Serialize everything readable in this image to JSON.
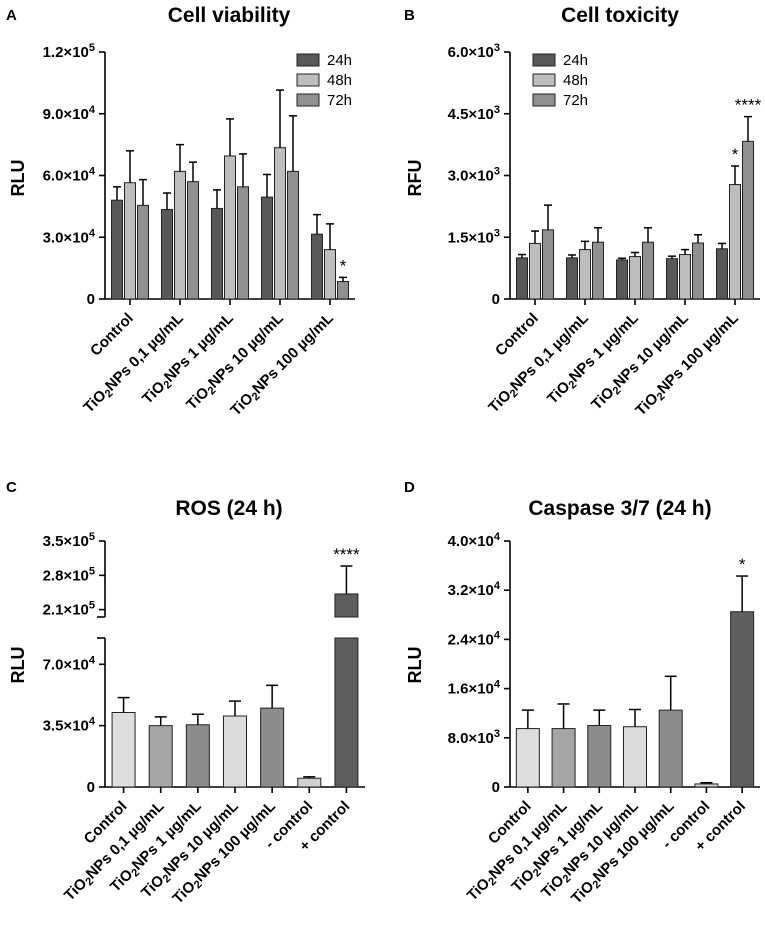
{
  "chart_data": [
    {
      "panel": "A",
      "type": "bar",
      "title": "Cell viability",
      "ylabel": "RLU",
      "yticks": [
        "0",
        "3.0×10⁴",
        "6.0×10⁴",
        "9.0×10⁴",
        "1.2×10⁵"
      ],
      "ylim": [
        0,
        120000
      ],
      "categories": [
        "Control",
        "TiO2NPs 0,1 µg/mL",
        "TiO2NPs 1 µg/mL",
        "TiO2NPs 10 µg/mL",
        "TiO2NPs 100 µg/mL"
      ],
      "series": [
        {
          "name": "24h",
          "color": "#585858",
          "values": [
            48000,
            43500,
            44000,
            49500,
            31500
          ],
          "errors": [
            6500,
            8000,
            9000,
            11000,
            9500
          ]
        },
        {
          "name": "48h",
          "color": "#bdbdbd",
          "values": [
            56500,
            62000,
            69500,
            73500,
            24000
          ],
          "errors": [
            15500,
            13000,
            18000,
            28000,
            12500
          ]
        },
        {
          "name": "72h",
          "color": "#909090",
          "values": [
            45500,
            57000,
            54500,
            62000,
            8500
          ],
          "errors": [
            12500,
            9500,
            16000,
            27000,
            2000
          ]
        }
      ],
      "annotations": [
        {
          "category": 4,
          "series": 2,
          "text": "*"
        }
      ]
    },
    {
      "panel": "B",
      "type": "bar",
      "title": "Cell toxicity",
      "ylabel": "RFU",
      "yticks": [
        "0",
        "1.5×10³",
        "3.0×10³",
        "4.5×10³",
        "6.0×10³"
      ],
      "ylim": [
        0,
        6000
      ],
      "categories": [
        "Control",
        "TiO2NPs 0,1 µg/mL",
        "TiO2NPs 1 µg/mL",
        "TiO2NPs 10 µg/mL",
        "TiO2NPs 100 µg/mL"
      ],
      "series": [
        {
          "name": "24h",
          "color": "#585858",
          "values": [
            1000,
            1000,
            950,
            980,
            1220
          ],
          "errors": [
            80,
            70,
            40,
            60,
            130
          ]
        },
        {
          "name": "48h",
          "color": "#bdbdbd",
          "values": [
            1350,
            1200,
            1030,
            1080,
            2780
          ],
          "errors": [
            300,
            200,
            100,
            120,
            450
          ]
        },
        {
          "name": "72h",
          "color": "#909090",
          "values": [
            1680,
            1380,
            1380,
            1360,
            3830
          ],
          "errors": [
            600,
            350,
            350,
            200,
            600
          ]
        }
      ],
      "annotations": [
        {
          "category": 4,
          "series": 1,
          "text": "*"
        },
        {
          "category": 4,
          "series": 2,
          "text": "****"
        }
      ]
    },
    {
      "panel": "C",
      "type": "bar",
      "title": "ROS (24 h)",
      "ylabel": "RLU",
      "yticks": [
        "0",
        "3.5×10⁴",
        "7.0×10⁴",
        "2.1×10⁵",
        "2.8×10⁵",
        "3.5×10⁵"
      ],
      "ylim": [
        0,
        350000
      ],
      "axis_break": [
        85000,
        195000
      ],
      "categories": [
        "Control",
        "TiO2NPs 0,1 µg/mL",
        "TiO2NPs 1 µg/mL",
        "TiO2NPs 10 µg/mL",
        "TiO2NPs 100 µg/mL",
        "- control",
        "+ control"
      ],
      "bars": [
        {
          "value": 42500,
          "error": 8500,
          "color": "#dedede"
        },
        {
          "value": 35000,
          "error": 5000,
          "color": "#a5a5a5"
        },
        {
          "value": 35500,
          "error": 6000,
          "color": "#8c8c8c"
        },
        {
          "value": 40500,
          "error": 8500,
          "color": "#dcdcdc"
        },
        {
          "value": 45000,
          "error": 13000,
          "color": "#8c8c8c"
        },
        {
          "value": 5000,
          "error": 800,
          "color": "#d0d0d0"
        },
        {
          "value": 242000,
          "error": 57000,
          "color": "#5e5e5e"
        }
      ],
      "annotations": [
        {
          "category": 6,
          "text": "****"
        }
      ]
    },
    {
      "panel": "D",
      "type": "bar",
      "title": "Caspase 3/7 (24 h)",
      "ylabel": "RLU",
      "yticks": [
        "0",
        "8.0×10³",
        "1.6×10⁴",
        "2.4×10⁴",
        "3.2×10⁴",
        "4.0×10⁴"
      ],
      "ylim": [
        0,
        40000
      ],
      "categories": [
        "Control",
        "TiO2NPs 0,1 µg/mL",
        "TiO2NPs 1 µg/mL",
        "TiO2NPs 10 µg/mL",
        "TiO2NPs 100 µg/mL",
        "- control",
        "+ control"
      ],
      "bars": [
        {
          "value": 9500,
          "error": 3000,
          "color": "#dedede"
        },
        {
          "value": 9500,
          "error": 4000,
          "color": "#a5a5a5"
        },
        {
          "value": 10000,
          "error": 2500,
          "color": "#8c8c8c"
        },
        {
          "value": 9800,
          "error": 2800,
          "color": "#dcdcdc"
        },
        {
          "value": 12500,
          "error": 5500,
          "color": "#8c8c8c"
        },
        {
          "value": 500,
          "error": 200,
          "color": "#d0d0d0"
        },
        {
          "value": 28500,
          "error": 5800,
          "color": "#5e5e5e"
        }
      ],
      "annotations": [
        {
          "category": 6,
          "text": "*"
        }
      ]
    }
  ]
}
